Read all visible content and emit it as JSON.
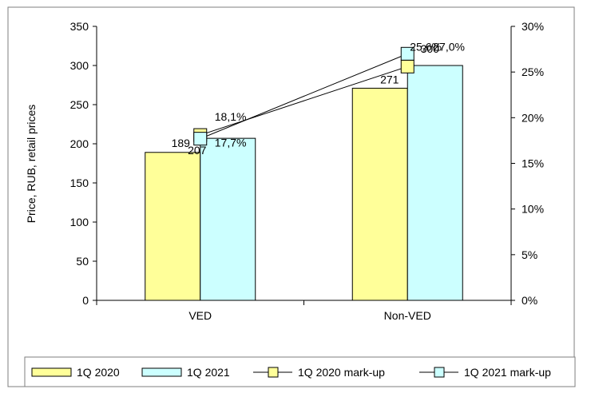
{
  "chart_data": {
    "type": "bar",
    "categories": [
      "VED",
      "Non-VED"
    ],
    "ylabel": "Price, RUB, retail prices",
    "ylim": [
      0,
      350
    ],
    "yticks": [
      0,
      50,
      100,
      150,
      200,
      250,
      300,
      350
    ],
    "y2lim": [
      0,
      0.3
    ],
    "y2ticks": [
      "0%",
      "5%",
      "10%",
      "15%",
      "20%",
      "25%",
      "30%"
    ],
    "grid": false,
    "legend_position": "bottom",
    "series": [
      {
        "name": "1Q 2020",
        "type": "bar",
        "axis": "left",
        "values": [
          189,
          271
        ],
        "labels": [
          "189",
          "271"
        ],
        "color": "#FFFF99"
      },
      {
        "name": "1Q 2021",
        "type": "bar",
        "axis": "left",
        "values": [
          207,
          300
        ],
        "labels": [
          "207",
          "300"
        ],
        "color": "#CCFFFF"
      },
      {
        "name": "1Q 2020 mark-up",
        "type": "line",
        "axis": "right",
        "values": [
          0.181,
          0.256
        ],
        "labels": [
          "18,1%",
          "25,6%"
        ],
        "color": "#FFFF99"
      },
      {
        "name": "1Q 2021 mark-up",
        "type": "line",
        "axis": "right",
        "values": [
          0.177,
          0.27
        ],
        "labels": [
          "17,7%",
          "27,0%"
        ],
        "color": "#CCFFFF"
      }
    ]
  }
}
